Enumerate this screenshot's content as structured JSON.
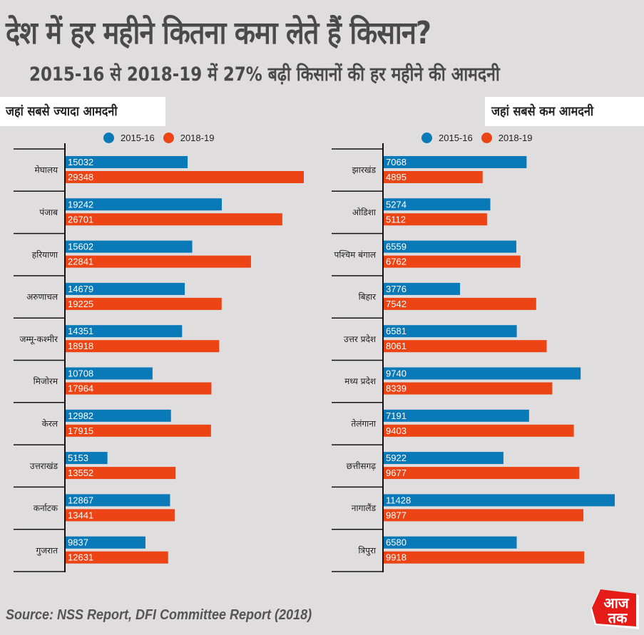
{
  "header": {
    "title": "देश में हर महीने कितना कमा लेते हैं किसान?",
    "subtitle": "2015-16 से 2018-19 में 27% बढ़ी किसानों की हर महीने की आमदनी"
  },
  "colors": {
    "series_2015_16": "#0a79b8",
    "series_2018_19": "#ec4415",
    "background": "#dfdddd"
  },
  "footer": {
    "source": "Source: NSS Report, DFI Committee Report (2018)",
    "logo": {
      "icon": "aaj-tak-logo",
      "line1": "आज",
      "line2": "तक"
    }
  },
  "chart_data": [
    {
      "type": "bar",
      "orientation": "horizontal",
      "title": "जहां सबसे ज्यादा आमदनी",
      "legend": [
        "2015-16",
        "2018-19"
      ],
      "legend_position": "top",
      "categories": [
        "मेघालय",
        "पंजाब",
        "हरियाणा",
        "अरुणाचल",
        "जम्मू-कश्मीर",
        "मिजोरम",
        "केरल",
        "उत्तराखंड",
        "कर्नाटक",
        "गुजरात"
      ],
      "series": [
        {
          "name": "2015-16",
          "values": [
            15032,
            19242,
            15602,
            14679,
            14351,
            10708,
            12982,
            5153,
            12867,
            9837
          ]
        },
        {
          "name": "2018-19",
          "values": [
            29348,
            26701,
            22841,
            19225,
            18918,
            17964,
            17915,
            13552,
            13441,
            12631
          ]
        }
      ],
      "xlim": [
        0,
        29348
      ],
      "grid": false,
      "data_labels": true
    },
    {
      "type": "bar",
      "orientation": "horizontal",
      "title": "जहां सबसे कम आमदनी",
      "legend": [
        "2015-16",
        "2018-19"
      ],
      "legend_position": "top",
      "categories": [
        "झारखंड",
        "ओडिशा",
        "पश्चिम बंगाल",
        "बिहार",
        "उत्तर प्रदेश",
        "मध्य प्रदेश",
        "तेलंगाना",
        "छत्तीसगढ़",
        "नागालैंड",
        "त्रिपुरा"
      ],
      "series": [
        {
          "name": "2015-16",
          "values": [
            7068,
            5274,
            6559,
            3776,
            6581,
            9740,
            7191,
            5922,
            11428,
            6580
          ]
        },
        {
          "name": "2018-19",
          "values": [
            4895,
            5112,
            6762,
            7542,
            8061,
            8339,
            9403,
            9677,
            9877,
            9918
          ]
        }
      ],
      "xlim": [
        0,
        11428
      ],
      "grid": false,
      "data_labels": true
    }
  ]
}
